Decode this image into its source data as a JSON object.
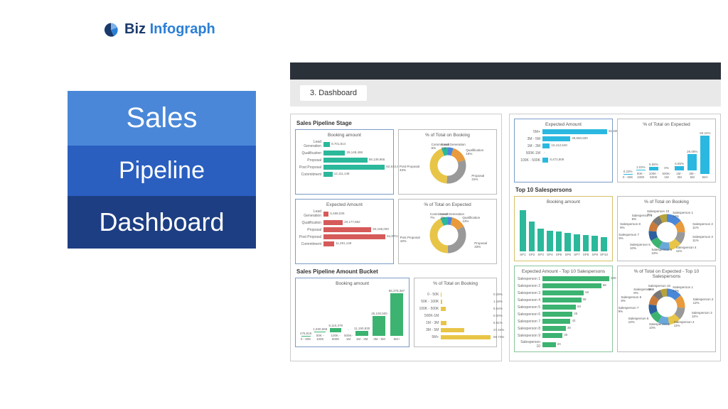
{
  "logo": {
    "biz": "Biz",
    "info": "Infograph",
    "pie_colors": [
      "#1a3a6b",
      "#2b7fd6",
      "#7fb3e8"
    ]
  },
  "title": {
    "sales": "Sales",
    "pipeline": "Pipeline",
    "dashboard": "Dashboard"
  },
  "tab": {
    "label": "3. Dashboard"
  },
  "colors": {
    "teal": "#2bb89b",
    "red": "#d65a5a",
    "green": "#3cb371",
    "yellow": "#e8c547",
    "cyan": "#2bb8e0",
    "blue": "#4a87d8",
    "orange": "#e89a3c",
    "border_blue": "#7a9cc6",
    "border_gray": "#bcbcbc",
    "border_yellow": "#d6c068",
    "border_green": "#8bc49a"
  },
  "left": {
    "sec1_title": "Sales Pipeline Stage",
    "booking_hbar": {
      "title": "Booking amount",
      "labels": [
        "Lead Generation",
        "Qualification",
        "Proposal",
        "Post Proposal",
        "Commitment"
      ],
      "values": [
        8701814,
        29148498,
        59139965,
        82510668,
        12111148
      ],
      "disp": [
        "8,701,814",
        "29,148,498",
        "59,139,965",
        "82,510,668",
        "12,111,148"
      ],
      "max": 90000000,
      "color": "#2bb89b",
      "border": "#7a9cc6"
    },
    "booking_donut": {
      "title": "% of Total on Booking",
      "slices": [
        {
          "label": "Lead Generation",
          "pct": 5,
          "color": "#4a87d8"
        },
        {
          "label": "Qualification",
          "pct": 15,
          "color": "#e89a3c"
        },
        {
          "label": "Proposal",
          "pct": 31,
          "color": "#999999"
        },
        {
          "label": "Post Proposal",
          "pct": 43,
          "color": "#e8c547"
        },
        {
          "label": "Commitment",
          "pct": 6,
          "color": "#2bb89b"
        }
      ],
      "border": "#bcbcbc"
    },
    "expected_hbar": {
      "title": "Expected Amount",
      "labels": [
        "Lead Generation",
        "Qualification",
        "Proposal",
        "Post Proposal",
        "Commitment"
      ],
      "values": [
        5498035,
        20177882,
        50196000,
        64870688,
        11291148
      ],
      "disp": [
        "5,498,035",
        "20,177,882",
        "50,196,000",
        "64,870,688",
        "11,291,148"
      ],
      "max": 70000000,
      "color": "#d65a5a",
      "border": "#7a9cc6"
    },
    "expected_donut": {
      "title": "% of Total on Expected",
      "slices": [
        {
          "label": "Lead Generation",
          "pct": 4,
          "color": "#4a87d8"
        },
        {
          "label": "Qualification",
          "pct": 13,
          "color": "#e89a3c"
        },
        {
          "label": "Proposal",
          "pct": 33,
          "color": "#999999"
        },
        {
          "label": "Post Proposal",
          "pct": 43,
          "color": "#e8c547"
        },
        {
          "label": "Commitment",
          "pct": 7,
          "color": "#2bb89b"
        }
      ],
      "border": "#bcbcbc"
    },
    "sec2_title": "Sales Pipeline Amount Bucket",
    "bucket_vbar": {
      "title": "Booking amount",
      "labels": [
        "0 - 50K",
        "50K - 100K",
        "100K - 500K",
        "500K-1M",
        "1M - 3M",
        "3M - 5M",
        "5M+"
      ],
      "values": [
        476816,
        1930658,
        9110379,
        0,
        11190830,
        45100500,
        96378387
      ],
      "disp": [
        "476,816",
        "1,930,658",
        "9,110,379",
        "-",
        "11,190,830",
        "45,100,500",
        "96,378,387"
      ],
      "max": 100000000,
      "color": "#3cb371",
      "border": "#7a9cc6"
    },
    "bucket_pct": {
      "title": "% of Total on Booking",
      "labels": [
        "0 - 50K",
        "50K - 100K",
        "100K - 500K",
        "500K-1M",
        "1M - 3M",
        "3M - 5M",
        "5M+"
      ],
      "values": [
        0.29,
        1.18,
        5.54,
        0,
        6.81,
        27.44,
        58.74
      ],
      "disp": [
        "0.29%",
        "1.18%",
        "5.54%",
        "0.00%",
        "6.81%",
        "27.44%",
        "58.74%"
      ],
      "max": 60,
      "color": "#e8c547",
      "border": "#bcbcbc"
    }
  },
  "right": {
    "expected_vbar": {
      "title": "Expected Amount",
      "labels": [
        "5M+",
        "3M - 5M",
        "1M - 3M",
        "500K-1M",
        "100K - 500K"
      ],
      "values": [
        91939107,
        39650500,
        10412540,
        0,
        8472809
      ],
      "disp": [
        "91,939,107",
        "39,650,500",
        "10,412,540",
        "-",
        "8,472,809"
      ],
      "max": 95000000,
      "color": "#2bb8e0",
      "border": "#7a9cc6",
      "orient": "h"
    },
    "expected_pct_vbar": {
      "title": "% of Total on Expected",
      "labels": [
        "0 - 50K",
        "50K - 100K",
        "100K - 500K",
        "500K-1M",
        "1M - 3M",
        "3M - 5M",
        "5M+"
      ],
      "values": [
        0.23,
        1.03,
        5.58,
        0,
        6.85,
        26.08,
        60.24
      ],
      "disp": [
        "0.23%",
        "1.03%",
        "5.58%",
        "0%",
        "6.85%",
        "26.08%",
        "60.24%"
      ],
      "max": 65,
      "color": "#2bb8e0",
      "border": "#bcbcbc"
    },
    "sec_title": "Top 10 Salespersons",
    "sales_booking": {
      "title": "Booking amount",
      "labels": [
        "SP1",
        "SP2",
        "SP3",
        "SP4",
        "SP5",
        "SP6",
        "SP7",
        "SP8",
        "SP9",
        "SP10"
      ],
      "values": [
        100,
        72,
        55,
        50,
        48,
        45,
        42,
        40,
        38,
        35
      ],
      "max": 100,
      "color": "#2bb89b",
      "border": "#d6c068"
    },
    "sales_donut1": {
      "title": "% of Total on Booking",
      "slices": [
        {
          "label": "Salesperson 1",
          "pct": 14,
          "color": "#4a87d8"
        },
        {
          "label": "Salesperson 2",
          "pct": 11,
          "color": "#e89a3c"
        },
        {
          "label": "Salesperson 3",
          "pct": 11,
          "color": "#999999"
        },
        {
          "label": "Salesperson 4",
          "pct": 11,
          "color": "#e8c547"
        },
        {
          "label": "Salesperson 5",
          "pct": 10,
          "color": "#6aa8dc"
        },
        {
          "label": "Salesperson 6",
          "pct": 10,
          "color": "#3cb371"
        },
        {
          "label": "Salesperson 7",
          "pct": 9,
          "color": "#2b5f9e"
        },
        {
          "label": "Salesperson 8",
          "pct": 9,
          "color": "#c97a3a"
        },
        {
          "label": "Salesperson 9",
          "pct": 8,
          "color": "#777"
        },
        {
          "label": "Salesperson 10",
          "pct": 7,
          "color": "#b8a23a"
        }
      ],
      "border": "#bcbcbc"
    },
    "sales_expected": {
      "title": "Expected Amount - Top 10 Salespersons",
      "labels": [
        "Salesperson 1",
        "Salesperson 2",
        "Salesperson 3",
        "Salesperson 4",
        "Salesperson 5",
        "Salesperson 6",
        "Salesperson 7",
        "Salesperson 8",
        "Salesperson 9",
        "Salesperson 10"
      ],
      "values": [
        100,
        88,
        62,
        58,
        50,
        45,
        42,
        35,
        30,
        20
      ],
      "max": 100,
      "color": "#3cb371",
      "border": "#8bc49a"
    },
    "sales_donut2": {
      "title": "% of Total on Expected - Top 10 Salespersons",
      "slices": [
        {
          "label": "Salesperson 1",
          "pct": 14,
          "color": "#4a87d8"
        },
        {
          "label": "Salesperson 2",
          "pct": 12,
          "color": "#e89a3c"
        },
        {
          "label": "Salesperson 3",
          "pct": 11,
          "color": "#999999"
        },
        {
          "label": "Salesperson 4",
          "pct": 11,
          "color": "#e8c547"
        },
        {
          "label": "Salesperson 5",
          "pct": 10,
          "color": "#6aa8dc"
        },
        {
          "label": "Salesperson 6",
          "pct": 10,
          "color": "#3cb371"
        },
        {
          "label": "Salesperson 7",
          "pct": 9,
          "color": "#2b5f9e"
        },
        {
          "label": "Salesperson 8",
          "pct": 9,
          "color": "#c97a3a"
        },
        {
          "label": "Salesperson 9",
          "pct": 8,
          "color": "#777"
        },
        {
          "label": "Salesperson 10",
          "pct": 6,
          "color": "#b8a23a"
        }
      ],
      "border": "#bcbcbc"
    }
  }
}
